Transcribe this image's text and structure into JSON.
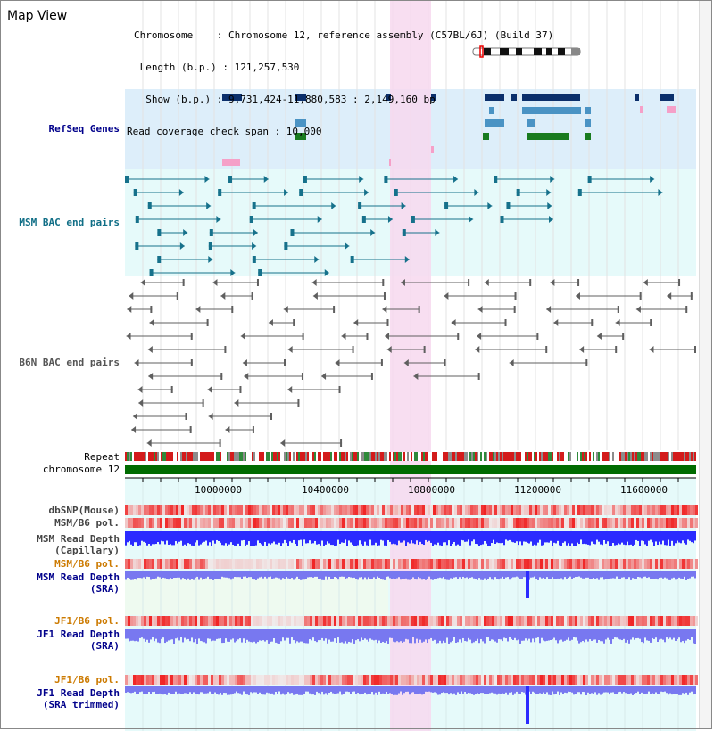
{
  "view": {
    "title": "Map View"
  },
  "header": {
    "chromosome_line": "Chromosome    : Chromosome 12, reference assembly (C57BL/6J) (Build 37)",
    "length_line": " Length (b.p.) : 121,257,530",
    "show_line": "  Show (b.p.) : 9,731,424-11,880,583 : 2,149,160 bp",
    "coverage_line": "Read coverage check span : 10,000"
  },
  "tracks": {
    "refseq": "RefSeq Genes",
    "msm_bac": "MSM BAC end pairs",
    "b6n_bac": "B6N BAC end pairs",
    "repeat": "Repeat",
    "chromosome": "chromosome 12",
    "dbsnp": "dbSNP(Mouse)",
    "msm_b6_pol": "MSM/B6 pol.",
    "msm_read_depth": "MSM Read Depth",
    "capillary": "(Capillary)",
    "msm_b6_pol_sra": "MSM/B6 pol.",
    "msm_read_depth_sra": "MSM Read Depth",
    "sra": "(SRA)",
    "jf1_b6_pol": "JF1/B6 pol.",
    "jf1_read_depth": "JF1 Read Depth",
    "jf1_sra": "(SRA)",
    "jf1_b6_pol2": "JF1/B6 pol.",
    "jf1_read_depth2": "JF1 Read Depth",
    "sra_trimmed": "(SRA trimmed)"
  },
  "axis": {
    "ticks": [
      "10000000",
      "10400000",
      "10800000",
      "11200000",
      "11600000"
    ]
  },
  "colors": {
    "refseq_bg": "#ddeefa",
    "light_cyan": "#e6fafa",
    "highlight": "#f7d8ef",
    "gene_navy": "#0b2f6b",
    "gene_blue": "#4a93c4",
    "gene_green": "#197b1f",
    "gene_pink": "#f5a0c8",
    "msm_teal": "#16718b",
    "b6n_gray": "#5f5f5f",
    "chromosome_green": "#006b00",
    "depth_blue": "#2b2bff",
    "depth_periwinkle": "#7878f0",
    "label_teal": "#106e86",
    "label_navy": "#00008b",
    "label_orange": "#cc7a00"
  }
}
